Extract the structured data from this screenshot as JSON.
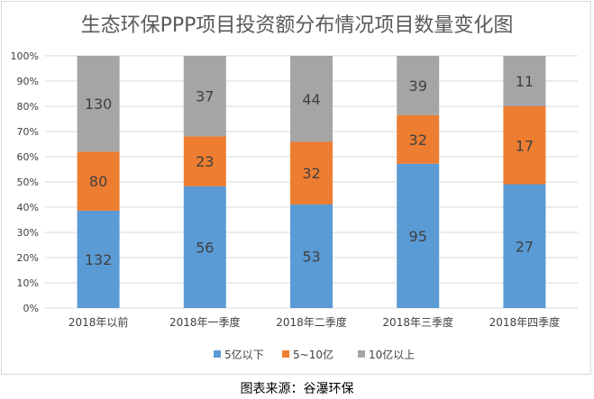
{
  "chart_data": {
    "type": "bar",
    "stacked": "percent",
    "title": "生态环保PPP项目投资额分布情况项目数量变化图",
    "categories": [
      "2018年以前",
      "2018年一季度",
      "2018年二季度",
      "2018年三季度",
      "2018年四季度"
    ],
    "series": [
      {
        "name": "5亿以下",
        "values": [
          132,
          56,
          53,
          95,
          27
        ],
        "color": "#5b9bd5"
      },
      {
        "name": "5~10亿",
        "values": [
          80,
          23,
          32,
          32,
          17
        ],
        "color": "#ed7d31"
      },
      {
        "name": "10亿以上",
        "values": [
          130,
          37,
          44,
          39,
          11
        ],
        "color": "#a5a5a5"
      }
    ],
    "y_ticks": [
      "0%",
      "10%",
      "20%",
      "30%",
      "40%",
      "50%",
      "60%",
      "70%",
      "80%",
      "90%",
      "100%"
    ],
    "ylim": [
      0,
      100
    ],
    "grid": true,
    "legend_position": "bottom"
  },
  "source": "图表来源：谷瀑环保"
}
